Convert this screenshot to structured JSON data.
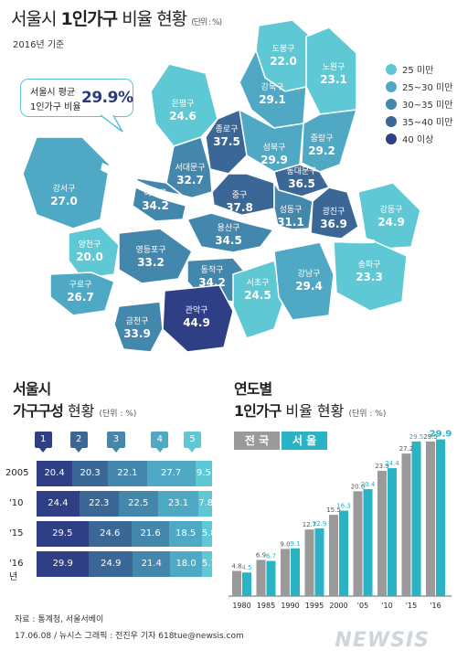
{
  "colors": {
    "c25": "#5fc8d5",
    "c30": "#4fa9c4",
    "c35": "#4487ad",
    "c40": "#3b6797",
    "c40p": "#2f3f85",
    "bar_nation": "#9a9a9a",
    "bar_seoul": "#2ab2c5"
  },
  "header": {
    "title_pre": "서울시 ",
    "title_bold": "1인가구",
    "title_post": " 비율 현황",
    "unit": "(단위 : %)",
    "subtitle": "2016년 기준"
  },
  "callout": {
    "line1": "서울시 평균",
    "line2": "1인가구 비율",
    "value": "29.9%"
  },
  "legend": [
    {
      "label": "25 미만",
      "color": "#5fc8d5"
    },
    {
      "label": "25~30 미만",
      "color": "#4fa9c4"
    },
    {
      "label": "30~35 미만",
      "color": "#4487ad"
    },
    {
      "label": "35~40 미만",
      "color": "#3b6797"
    },
    {
      "label": "40 이상",
      "color": "#2f3f85"
    }
  ],
  "chart_data": [
    {
      "type": "map",
      "title": "서울시 1인가구 비율 현황",
      "unit": "%",
      "districts": [
        {
          "name": "도봉구",
          "value": "22.0",
          "level": 0
        },
        {
          "name": "노원구",
          "value": "23.1",
          "level": 0
        },
        {
          "name": "강북구",
          "value": "29.1",
          "level": 1
        },
        {
          "name": "은평구",
          "value": "24.6",
          "level": 0
        },
        {
          "name": "종로구",
          "value": "37.5",
          "level": 3
        },
        {
          "name": "성북구",
          "value": "29.9",
          "level": 1
        },
        {
          "name": "중랑구",
          "value": "29.2",
          "level": 1
        },
        {
          "name": "서대문구",
          "value": "32.7",
          "level": 2
        },
        {
          "name": "동대문구",
          "value": "36.5",
          "level": 3
        },
        {
          "name": "강서구",
          "value": "27.0",
          "level": 1
        },
        {
          "name": "마포구",
          "value": "34.2",
          "level": 2
        },
        {
          "name": "중구",
          "value": "37.8",
          "level": 3
        },
        {
          "name": "성동구",
          "value": "31.1",
          "level": 2
        },
        {
          "name": "광진구",
          "value": "36.9",
          "level": 3
        },
        {
          "name": "강동구",
          "value": "24.9",
          "level": 0
        },
        {
          "name": "용산구",
          "value": "34.5",
          "level": 2
        },
        {
          "name": "양천구",
          "value": "20.0",
          "level": 0
        },
        {
          "name": "영등포구",
          "value": "33.2",
          "level": 2
        },
        {
          "name": "동작구",
          "value": "34.2",
          "level": 2
        },
        {
          "name": "구로구",
          "value": "26.7",
          "level": 1
        },
        {
          "name": "서초구",
          "value": "24.5",
          "level": 0
        },
        {
          "name": "강남구",
          "value": "29.4",
          "level": 1
        },
        {
          "name": "송파구",
          "value": "23.3",
          "level": 0
        },
        {
          "name": "관악구",
          "value": "44.9",
          "level": 4
        },
        {
          "name": "금천구",
          "value": "33.9",
          "level": 2
        }
      ]
    },
    {
      "type": "bar",
      "stacked": true,
      "title": "서울시 가구구성 현황",
      "unit": "(단위 : %)",
      "categories": [
        "2005",
        "'10",
        "'15",
        "'16년"
      ],
      "series": [
        {
          "name": "1인가구",
          "color": "#2f3f85",
          "values": [
            20.4,
            24.4,
            29.5,
            29.9
          ]
        },
        {
          "name": "2인가구",
          "color": "#3b6797",
          "values": [
            20.3,
            22.3,
            24.6,
            24.9
          ]
        },
        {
          "name": "3인가구",
          "color": "#4487ad",
          "values": [
            22.1,
            22.5,
            21.6,
            21.4
          ]
        },
        {
          "name": "4인가구",
          "color": "#4fa9c4",
          "values": [
            27.7,
            23.1,
            18.5,
            18.0
          ]
        },
        {
          "name": "5인가구",
          "color": "#5fc8d5",
          "values": [
            9.5,
            7.8,
            5.8,
            5.7
          ]
        }
      ],
      "value_labels": [
        [
          "20.4",
          "20.3",
          "22.1",
          "27.7",
          "9.5"
        ],
        [
          "24.4",
          "22.3",
          "22.5",
          "23.1",
          "7.8"
        ],
        [
          "29.5",
          "24.6",
          "21.6",
          "18.5",
          "5.8"
        ],
        [
          "29.9",
          "24.9",
          "21.4",
          "18.0",
          "5.7"
        ]
      ]
    },
    {
      "type": "bar",
      "title": "연도별 1인가구 비율 현황",
      "unit": "(단위 : %)",
      "categories": [
        "1980",
        "1985",
        "1990",
        "1995",
        "2000",
        "'05",
        "'10",
        "'15",
        "'16"
      ],
      "series": [
        {
          "name": "전 국",
          "color": "#9a9a9a",
          "values": [
            4.8,
            6.9,
            9.0,
            12.7,
            15.5,
            20.0,
            23.9,
            27.2,
            29.5
          ]
        },
        {
          "name": "서 울",
          "color": "#2ab2c5",
          "values": [
            4.5,
            6.7,
            9.1,
            12.9,
            16.3,
            20.4,
            24.4,
            29.5,
            29.9
          ]
        }
      ],
      "value_labels": {
        "nation": [
          "4.8",
          "6.9",
          "9.0",
          "12.7",
          "15.5",
          "20.0",
          "23.9",
          "27.2",
          "29.5"
        ],
        "seoul": [
          "4.5",
          "6.7",
          "9.1",
          "12.9",
          "16.3",
          "20.4",
          "24.4",
          "29.5",
          "29.9"
        ]
      }
    }
  ],
  "household": {
    "title_line1": "서울시",
    "title_line2": "가구구성",
    "title_line2_rest": " 현황",
    "unit": "(단위 : %)"
  },
  "yearly": {
    "title_line1": "연도별",
    "title_line2": "1인가구",
    "title_line2_rest": " 비율 현황",
    "unit": "(단위 : %)"
  },
  "footer": {
    "source": "자료 : 통계청, 서울서베이",
    "credit": "17.06.08 / 뉴시스 그래픽 : 전진우 기자 618tue@newsis.com",
    "watermark": "NEWSIS"
  }
}
